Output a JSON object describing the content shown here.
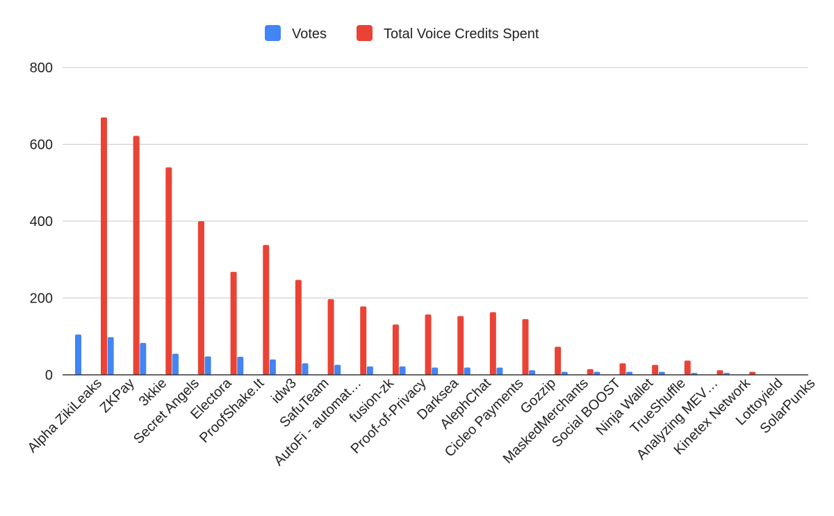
{
  "chart_data": {
    "type": "bar",
    "title": "",
    "xlabel": "",
    "ylabel": "",
    "ylim": [
      0,
      800
    ],
    "yticks": [
      0,
      200,
      400,
      600,
      800
    ],
    "grid": true,
    "legend_position": "top-center",
    "categories": [
      "Alpha ZikiLeaks",
      "ZKPay",
      "3kkie",
      "Secret Angels",
      "Electora",
      "ProofShake.It",
      "idw3",
      "SafuTeam",
      "AutoFi - automat…",
      "fusion-zk",
      "Proof-of-Privacy",
      "Darksea",
      "AlephChat",
      "Cicleo Payments",
      "Gozzip",
      "MaskedMerchants",
      "Social BOOST",
      "Ninja Wallet",
      "TrueShuffle",
      "Analyzing MEV…",
      "Kinetex Network",
      "Lottoyield",
      "SolarPunks"
    ],
    "series": [
      {
        "name": "Votes",
        "color": "#4285f4",
        "values": [
          105,
          98,
          83,
          55,
          48,
          47,
          40,
          30,
          26,
          22,
          22,
          19,
          19,
          19,
          12,
          8,
          8,
          8,
          8,
          5,
          5,
          0,
          0
        ]
      },
      {
        "name": "Total Voice Credits Spent",
        "color": "#ea4335",
        "values": [
          670,
          622,
          540,
          400,
          268,
          338,
          247,
          197,
          178,
          131,
          157,
          153,
          163,
          145,
          73,
          15,
          30,
          26,
          37,
          12,
          8,
          0,
          0
        ]
      }
    ]
  },
  "colors": {
    "grid": "#c8c8c8",
    "axis": "#333333"
  }
}
